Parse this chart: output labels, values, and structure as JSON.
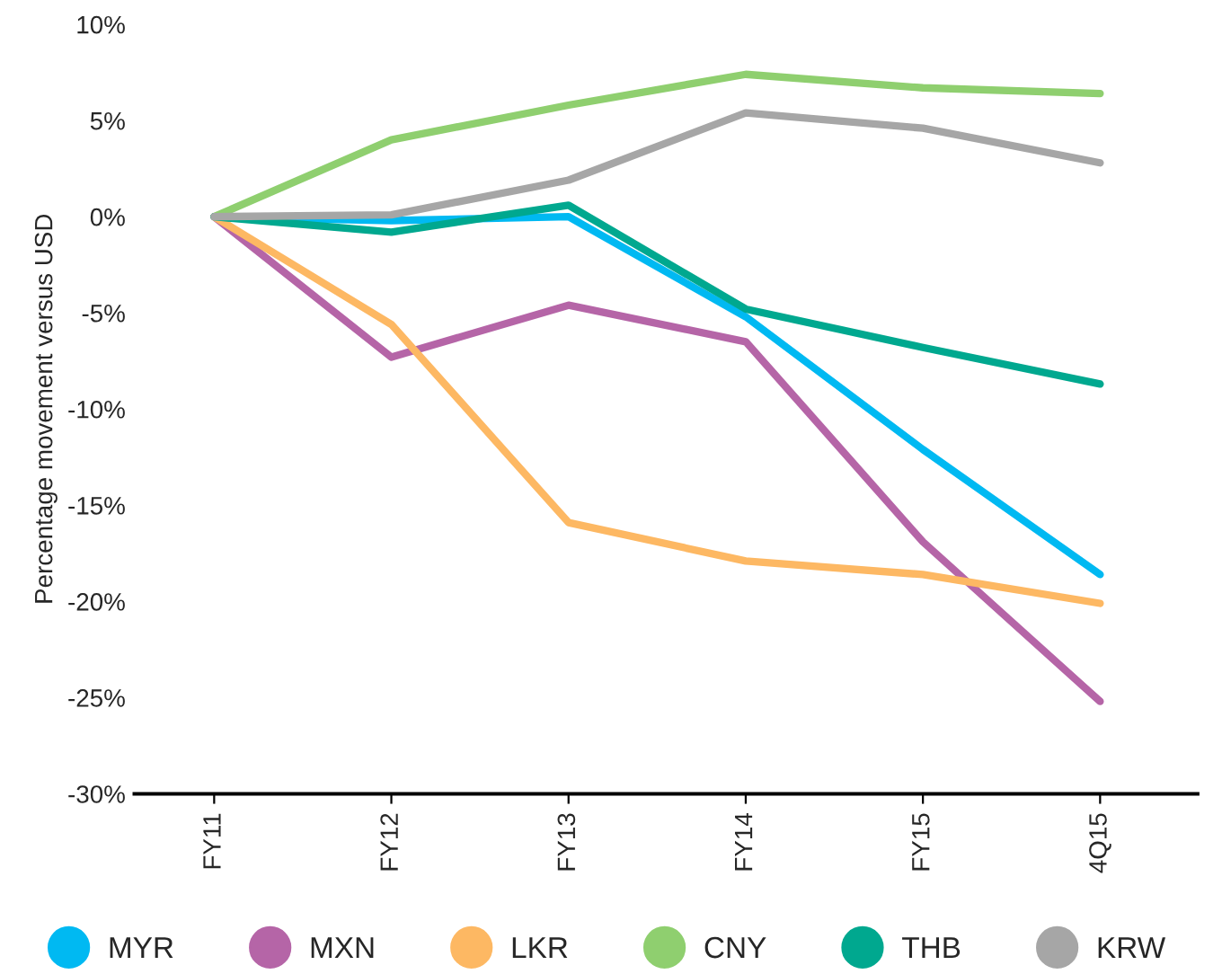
{
  "chart_data": {
    "type": "line",
    "ylabel": "Percentage movement versus USD",
    "categories": [
      "FY11",
      "FY12",
      "FY13",
      "FY14",
      "FY15",
      "4Q15"
    ],
    "series": [
      {
        "name": "MYR",
        "color": "#00b9f2",
        "values": [
          0,
          -0.2,
          0,
          -5.2,
          -12.1,
          -18.6
        ]
      },
      {
        "name": "MXN",
        "color": "#b565a7",
        "values": [
          0,
          -7.3,
          -4.6,
          -6.5,
          -16.9,
          -25.2
        ]
      },
      {
        "name": "LKR",
        "color": "#fdb863",
        "values": [
          0,
          -5.6,
          -15.9,
          -17.9,
          -18.6,
          -20.1
        ]
      },
      {
        "name": "CNY",
        "color": "#8fcf6f",
        "values": [
          0,
          4.0,
          5.8,
          7.4,
          6.7,
          6.4
        ]
      },
      {
        "name": "THB",
        "color": "#00a88f",
        "values": [
          0,
          -0.8,
          0.6,
          -4.8,
          -6.8,
          -8.7
        ]
      },
      {
        "name": "KRW",
        "color": "#a6a6a6",
        "values": [
          0,
          0.1,
          1.9,
          5.4,
          4.6,
          2.8
        ]
      }
    ],
    "ylim": [
      -30,
      10
    ],
    "yticks": [
      {
        "value": -30,
        "label": "-30%"
      },
      {
        "value": -25,
        "label": "-25%"
      },
      {
        "value": -20,
        "label": "-20%"
      },
      {
        "value": -15,
        "label": "-15%"
      },
      {
        "value": -10,
        "label": "-10%"
      },
      {
        "value": -5,
        "label": "-5%"
      },
      {
        "value": 0,
        "label": "0%"
      },
      {
        "value": 5,
        "label": "5%"
      },
      {
        "value": 10,
        "label": "10%"
      }
    ],
    "grid": false,
    "legend": "bottom",
    "marker": "none",
    "line_style": "solid"
  }
}
